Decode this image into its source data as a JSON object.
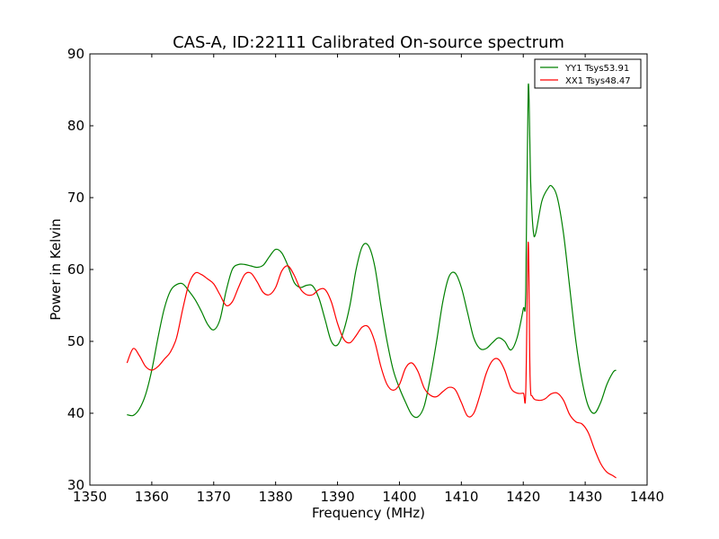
{
  "chart_data": {
    "type": "line",
    "title": "CAS-A, ID:22111 Calibrated On-source spectrum",
    "xlabel": "Frequency (MHz)",
    "ylabel": "Power in Kelvin",
    "xlim": [
      1350,
      1440
    ],
    "ylim": [
      30,
      90
    ],
    "xticks": [
      1350,
      1360,
      1370,
      1380,
      1390,
      1400,
      1410,
      1420,
      1430,
      1440
    ],
    "yticks": [
      30,
      40,
      50,
      60,
      70,
      80,
      90
    ],
    "grid": false,
    "legend_position": "top-right",
    "series": [
      {
        "name": "YY1 Tsys53.91",
        "color": "#008000",
        "points": [
          [
            1356.0,
            39.8
          ],
          [
            1357.0,
            39.7
          ],
          [
            1358.0,
            40.6
          ],
          [
            1359.0,
            42.6
          ],
          [
            1360.0,
            46.0
          ],
          [
            1361.0,
            50.5
          ],
          [
            1362.0,
            54.5
          ],
          [
            1363.0,
            57.0
          ],
          [
            1364.0,
            57.9
          ],
          [
            1365.0,
            58.0
          ],
          [
            1366.0,
            57.0
          ],
          [
            1367.0,
            55.8
          ],
          [
            1368.0,
            54.2
          ],
          [
            1369.0,
            52.4
          ],
          [
            1370.0,
            51.6
          ],
          [
            1371.0,
            53.0
          ],
          [
            1372.0,
            57.0
          ],
          [
            1373.0,
            60.0
          ],
          [
            1374.0,
            60.7
          ],
          [
            1375.0,
            60.7
          ],
          [
            1376.0,
            60.5
          ],
          [
            1377.0,
            60.3
          ],
          [
            1378.0,
            60.6
          ],
          [
            1379.0,
            61.8
          ],
          [
            1380.0,
            62.8
          ],
          [
            1381.0,
            62.3
          ],
          [
            1382.0,
            60.5
          ],
          [
            1383.0,
            58.2
          ],
          [
            1384.0,
            57.5
          ],
          [
            1385.0,
            57.8
          ],
          [
            1386.0,
            57.7
          ],
          [
            1387.0,
            56.0
          ],
          [
            1388.0,
            53.0
          ],
          [
            1389.0,
            50.0
          ],
          [
            1390.0,
            49.5
          ],
          [
            1391.0,
            51.5
          ],
          [
            1392.0,
            55.0
          ],
          [
            1393.0,
            60.0
          ],
          [
            1394.0,
            63.2
          ],
          [
            1395.0,
            63.3
          ],
          [
            1396.0,
            60.5
          ],
          [
            1397.0,
            55.0
          ],
          [
            1398.0,
            50.0
          ],
          [
            1399.0,
            46.0
          ],
          [
            1400.0,
            43.5
          ],
          [
            1401.0,
            41.5
          ],
          [
            1402.0,
            39.8
          ],
          [
            1403.0,
            39.5
          ],
          [
            1404.0,
            41.0
          ],
          [
            1405.0,
            45.0
          ],
          [
            1406.0,
            50.0
          ],
          [
            1407.0,
            55.5
          ],
          [
            1408.0,
            59.0
          ],
          [
            1409.0,
            59.5
          ],
          [
            1410.0,
            57.5
          ],
          [
            1411.0,
            54.0
          ],
          [
            1412.0,
            50.5
          ],
          [
            1413.0,
            49.0
          ],
          [
            1414.0,
            49.0
          ],
          [
            1415.0,
            49.8
          ],
          [
            1416.0,
            50.5
          ],
          [
            1417.0,
            50.0
          ],
          [
            1418.0,
            48.8
          ],
          [
            1419.0,
            50.5
          ],
          [
            1420.0,
            54.5
          ],
          [
            1420.4,
            57.0
          ],
          [
            1420.8,
            85.5
          ],
          [
            1421.2,
            72.0
          ],
          [
            1421.6,
            65.5
          ],
          [
            1422.0,
            65.0
          ],
          [
            1423.0,
            69.5
          ],
          [
            1424.0,
            71.3
          ],
          [
            1424.6,
            71.6
          ],
          [
            1425.5,
            70.0
          ],
          [
            1426.5,
            65.0
          ],
          [
            1427.5,
            57.5
          ],
          [
            1428.5,
            50.0
          ],
          [
            1429.5,
            44.5
          ],
          [
            1430.5,
            41.0
          ],
          [
            1431.5,
            40.0
          ],
          [
            1432.5,
            41.5
          ],
          [
            1433.5,
            44.0
          ],
          [
            1434.5,
            45.7
          ],
          [
            1435.0,
            46.0
          ]
        ]
      },
      {
        "name": "XX1 Tsys48.47",
        "color": "#ff0000",
        "points": [
          [
            1356.0,
            47.0
          ],
          [
            1357.0,
            49.0
          ],
          [
            1358.0,
            48.0
          ],
          [
            1359.0,
            46.5
          ],
          [
            1360.0,
            46.0
          ],
          [
            1361.0,
            46.5
          ],
          [
            1362.0,
            47.5
          ],
          [
            1363.0,
            48.5
          ],
          [
            1364.0,
            50.5
          ],
          [
            1365.0,
            54.5
          ],
          [
            1366.0,
            58.0
          ],
          [
            1367.0,
            59.5
          ],
          [
            1368.0,
            59.3
          ],
          [
            1369.0,
            58.7
          ],
          [
            1370.0,
            58.0
          ],
          [
            1371.0,
            56.5
          ],
          [
            1372.0,
            55.0
          ],
          [
            1373.0,
            55.5
          ],
          [
            1374.0,
            57.5
          ],
          [
            1375.0,
            59.3
          ],
          [
            1376.0,
            59.5
          ],
          [
            1377.0,
            58.3
          ],
          [
            1378.0,
            56.8
          ],
          [
            1379.0,
            56.5
          ],
          [
            1380.0,
            57.5
          ],
          [
            1381.0,
            59.8
          ],
          [
            1382.0,
            60.5
          ],
          [
            1383.0,
            59.2
          ],
          [
            1384.0,
            57.3
          ],
          [
            1385.0,
            56.5
          ],
          [
            1386.0,
            56.5
          ],
          [
            1387.0,
            57.2
          ],
          [
            1388.0,
            57.2
          ],
          [
            1389.0,
            55.5
          ],
          [
            1390.0,
            52.5
          ],
          [
            1391.0,
            50.3
          ],
          [
            1392.0,
            49.8
          ],
          [
            1393.0,
            50.8
          ],
          [
            1394.0,
            52.0
          ],
          [
            1395.0,
            52.0
          ],
          [
            1396.0,
            50.0
          ],
          [
            1397.0,
            46.5
          ],
          [
            1398.0,
            44.0
          ],
          [
            1399.0,
            43.2
          ],
          [
            1400.0,
            44.0
          ],
          [
            1401.0,
            46.3
          ],
          [
            1402.0,
            47.0
          ],
          [
            1403.0,
            45.8
          ],
          [
            1404.0,
            43.5
          ],
          [
            1405.0,
            42.5
          ],
          [
            1406.0,
            42.3
          ],
          [
            1407.0,
            43.0
          ],
          [
            1408.0,
            43.6
          ],
          [
            1409.0,
            43.3
          ],
          [
            1410.0,
            41.5
          ],
          [
            1411.0,
            39.6
          ],
          [
            1412.0,
            40.0
          ],
          [
            1413.0,
            42.5
          ],
          [
            1414.0,
            45.5
          ],
          [
            1415.0,
            47.3
          ],
          [
            1416.0,
            47.5
          ],
          [
            1417.0,
            46.0
          ],
          [
            1418.0,
            43.5
          ],
          [
            1419.0,
            42.8
          ],
          [
            1420.0,
            42.8
          ],
          [
            1420.4,
            43.0
          ],
          [
            1420.8,
            63.8
          ],
          [
            1421.1,
            45.0
          ],
          [
            1421.5,
            42.3
          ],
          [
            1422.5,
            41.8
          ],
          [
            1423.5,
            42.0
          ],
          [
            1424.5,
            42.7
          ],
          [
            1425.5,
            42.8
          ],
          [
            1426.5,
            41.8
          ],
          [
            1427.5,
            39.8
          ],
          [
            1428.5,
            38.8
          ],
          [
            1429.5,
            38.5
          ],
          [
            1430.5,
            37.3
          ],
          [
            1431.5,
            35.0
          ],
          [
            1432.5,
            33.0
          ],
          [
            1433.5,
            31.8
          ],
          [
            1434.5,
            31.3
          ],
          [
            1435.0,
            31.0
          ]
        ]
      }
    ]
  }
}
